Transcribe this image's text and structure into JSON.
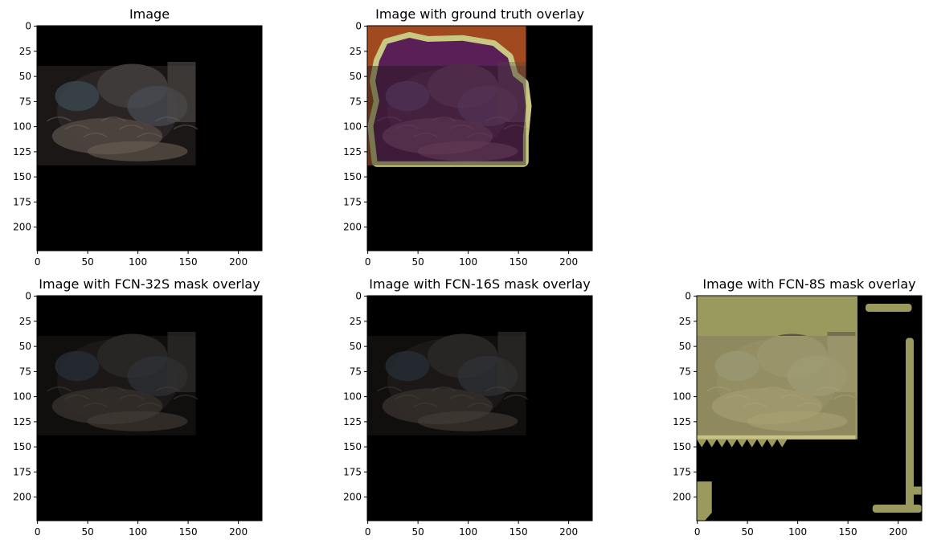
{
  "figure": {
    "panels": [
      {
        "id": "p1",
        "title": "Image",
        "overlay": "none"
      },
      {
        "id": "p2",
        "title": "Image with ground truth overlay",
        "overlay": "ground-truth"
      },
      {
        "id": "p3",
        "title": "Image with FCN-32S mask overlay",
        "overlay": "fcn32s"
      },
      {
        "id": "p4",
        "title": "Image with FCN-16S mask overlay",
        "overlay": "fcn16s"
      },
      {
        "id": "p5",
        "title": "Image with FCN-8S mask overlay",
        "overlay": "fcn8s"
      }
    ],
    "axes": {
      "x_ticks": [
        "0",
        "50",
        "100",
        "150",
        "200"
      ],
      "y_ticks": [
        "0",
        "25",
        "50",
        "75",
        "100",
        "125",
        "150",
        "175",
        "200"
      ],
      "x_range": [
        0,
        224
      ],
      "y_range": [
        0,
        224
      ]
    },
    "image_content": {
      "subject": "cat",
      "photo_extent": {
        "x_max": 158,
        "y_max": 139
      }
    },
    "colors": {
      "ground_truth_background": "#a14a1f",
      "ground_truth_foreground": "#5b1f57",
      "ground_truth_border": "#c9c883",
      "fcn8s_mask": "#9b9a5e",
      "fcn8s_mask_image": "#cfc98a"
    }
  }
}
